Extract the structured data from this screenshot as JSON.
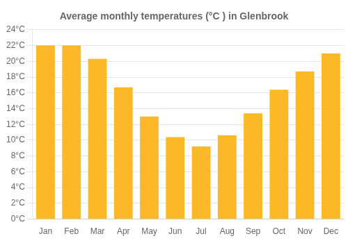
{
  "chart_data": {
    "type": "bar",
    "title": "Average monthly temperatures (°C ) in Glenbrook",
    "categories": [
      "Jan",
      "Feb",
      "Mar",
      "Apr",
      "May",
      "Jun",
      "Jul",
      "Aug",
      "Sep",
      "Oct",
      "Nov",
      "Dec"
    ],
    "values": [
      22.0,
      22.0,
      20.3,
      16.7,
      13.0,
      10.4,
      9.2,
      10.6,
      13.4,
      16.4,
      18.7,
      21.0
    ],
    "color": "#FDB827",
    "ylim": [
      0,
      24
    ],
    "yticks": [
      {
        "value": 0,
        "label": "0°C"
      },
      {
        "value": 2,
        "label": "2°C"
      },
      {
        "value": 4,
        "label": "4°C"
      },
      {
        "value": 6,
        "label": "6°C"
      },
      {
        "value": 8,
        "label": "8°C"
      },
      {
        "value": 10,
        "label": "10°C"
      },
      {
        "value": 12,
        "label": "12°C"
      },
      {
        "value": 14,
        "label": "14°C"
      },
      {
        "value": 16,
        "label": "16°C"
      },
      {
        "value": 18,
        "label": "18°C"
      },
      {
        "value": 20,
        "label": "20°C"
      },
      {
        "value": 22,
        "label": "22°C"
      },
      {
        "value": 24,
        "label": "24°C"
      }
    ],
    "grid": true
  }
}
